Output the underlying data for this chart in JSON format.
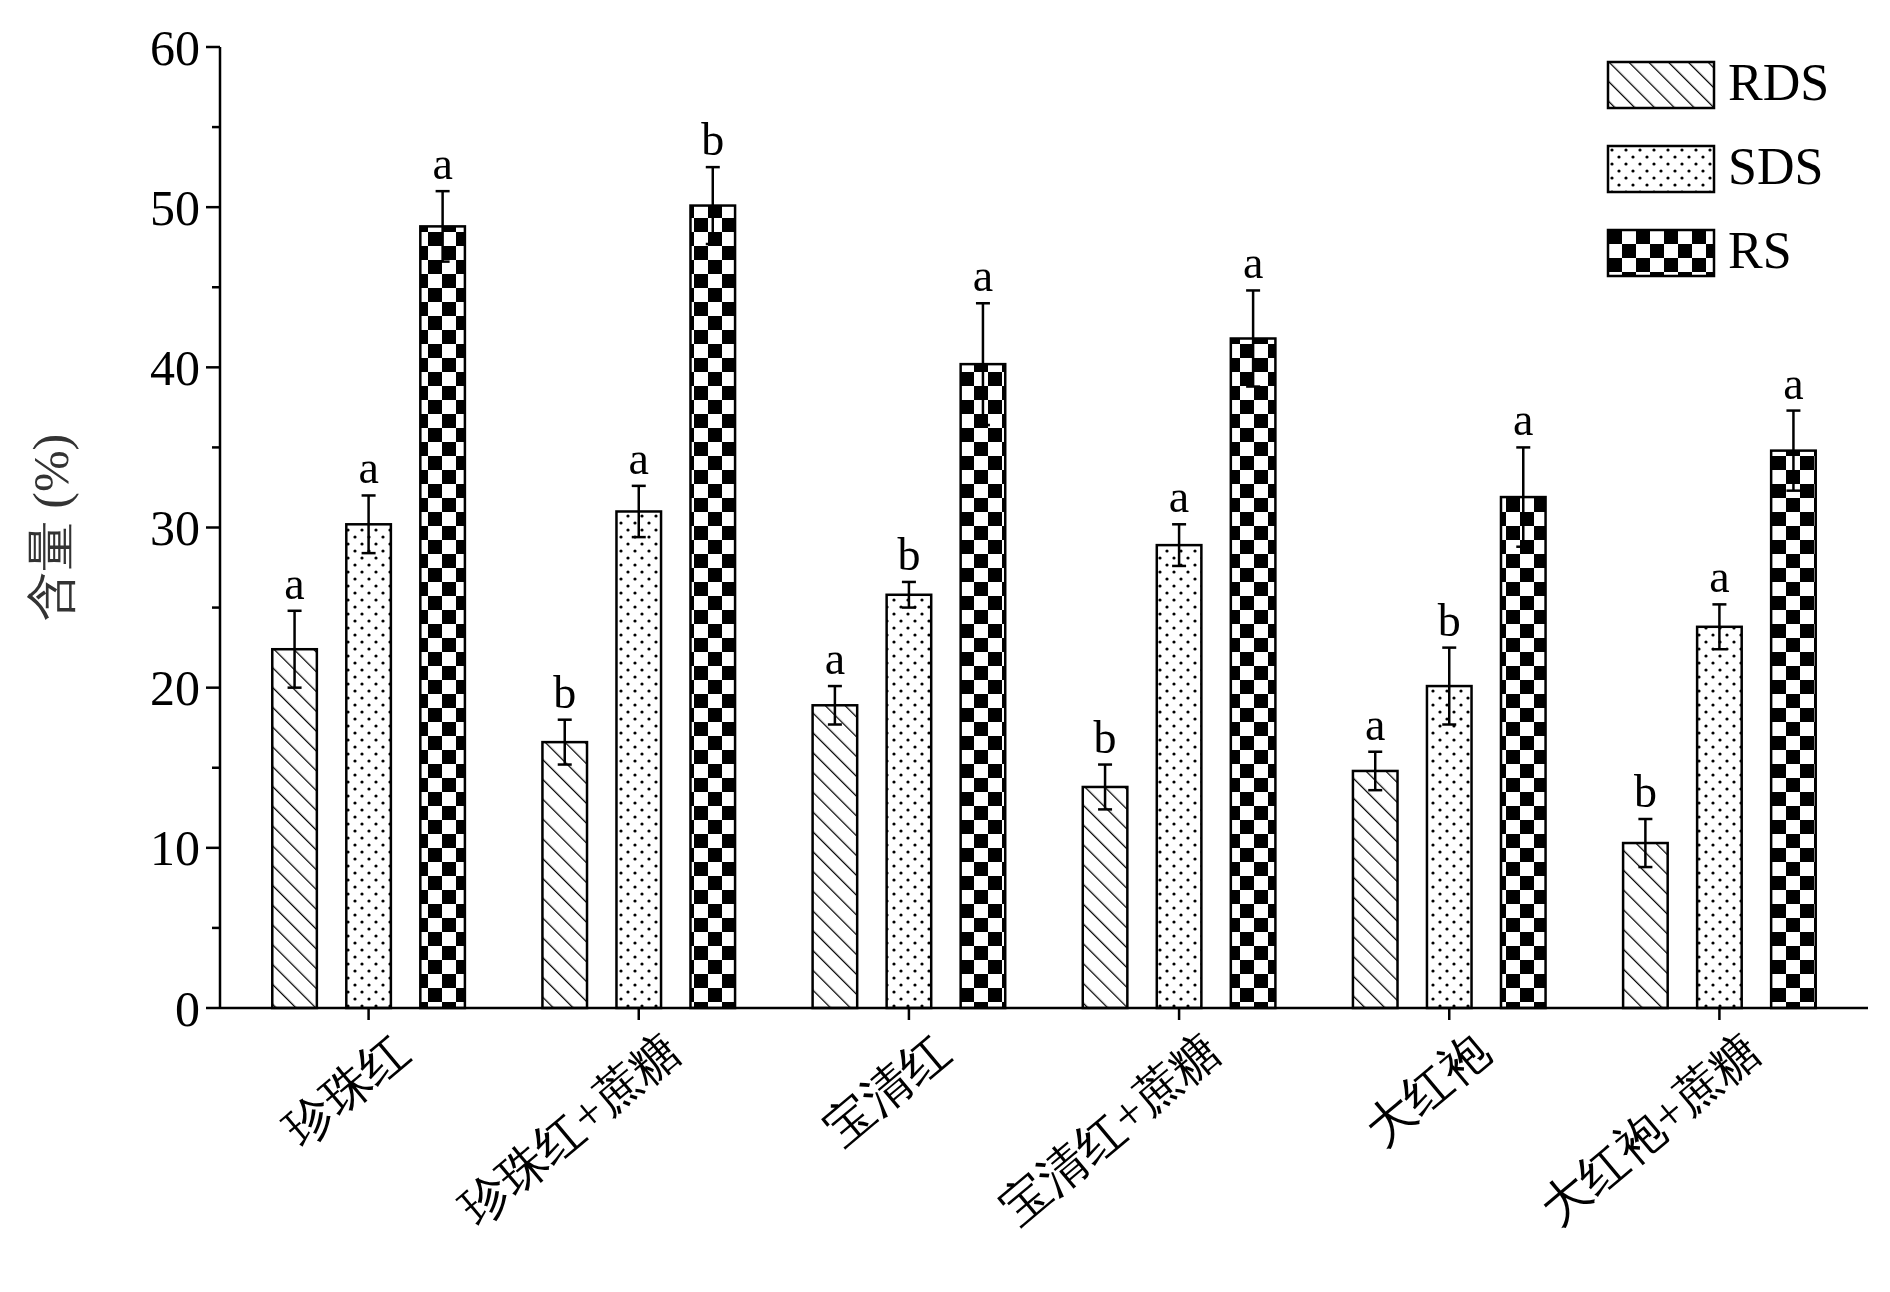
{
  "chart_data": {
    "type": "bar",
    "ylabel": "含量 (%)",
    "categories": [
      "珍珠红",
      "珍珠红+蔗糖",
      "宝清红",
      "宝清红+蔗糖",
      "大红袍",
      "大红袍+蔗糖"
    ],
    "series": [
      {
        "name": "RDS",
        "color": "#000000",
        "values": [
          22.4,
          16.6,
          18.9,
          13.8,
          14.8,
          10.3
        ],
        "errors": [
          2.4,
          1.4,
          1.2,
          1.4,
          1.2,
          1.5
        ]
      },
      {
        "name": "SDS",
        "color": "#000000",
        "values": [
          30.2,
          31.0,
          25.8,
          28.9,
          20.1,
          23.8
        ],
        "errors": [
          1.8,
          1.6,
          0.8,
          1.3,
          2.4,
          1.4
        ]
      },
      {
        "name": "RS",
        "color": "#000000",
        "values": [
          48.8,
          50.1,
          40.2,
          41.8,
          31.9,
          34.8
        ],
        "errors": [
          2.2,
          2.4,
          3.8,
          3.0,
          3.1,
          2.5
        ]
      }
    ],
    "ylim": [
      0,
      60
    ],
    "yticks": [
      0,
      {
        "value": 5,
        "label": null
      },
      10,
      {
        "value": 15,
        "label": null
      },
      20,
      {
        "value": 25,
        "label": null
      },
      30,
      {
        "value": 35,
        "label": null
      },
      40,
      {
        "value": 45,
        "label": null
      },
      50,
      {
        "value": 55,
        "label": null
      },
      60
    ],
    "legend": "top right",
    "grid": false,
    "annotations": [
      "a",
      "a",
      "a",
      "b",
      "a",
      "b",
      "a",
      "b",
      "a",
      "b",
      "a",
      "a",
      "a",
      "b",
      "a",
      "b",
      "a",
      "a"
    ]
  }
}
